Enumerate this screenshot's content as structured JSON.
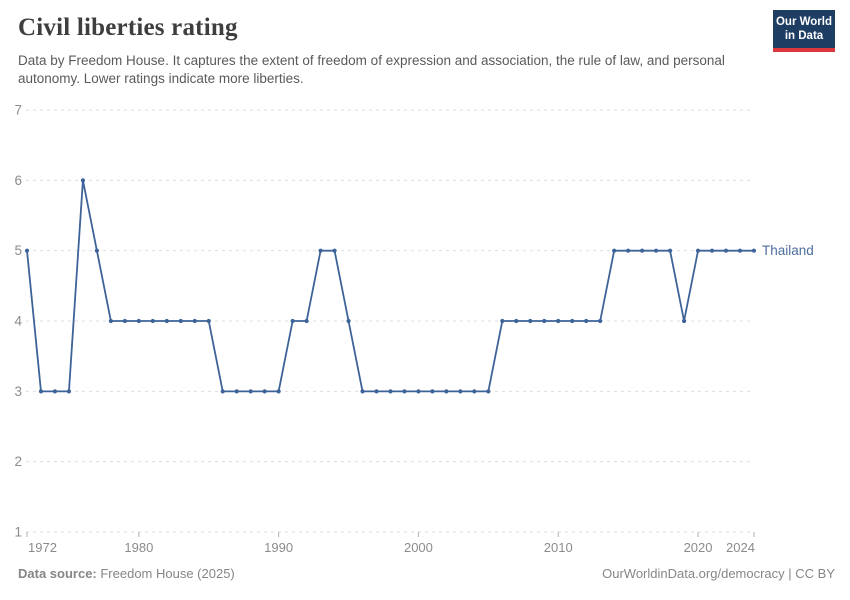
{
  "header": {
    "title": "Civil liberties rating",
    "subtitle": "Data by Freedom House. It captures the extent of freedom of expression and association, the rule of law, and personal autonomy. Lower ratings indicate more liberties.",
    "logo_line1": "Our World",
    "logo_line2": "in Data"
  },
  "chart_data": {
    "type": "line",
    "title": "Civil liberties rating",
    "entity": "Thailand",
    "xlabel": "",
    "ylabel": "",
    "ylim": [
      1,
      7
    ],
    "yticks": [
      1,
      2,
      3,
      4,
      5,
      6,
      7
    ],
    "xticks": [
      1972,
      1980,
      1990,
      2000,
      2010,
      2020,
      2024
    ],
    "grid": "horizontal-dashed",
    "legend_position": "right-of-line-end",
    "x": [
      1972,
      1973,
      1974,
      1975,
      1976,
      1977,
      1978,
      1979,
      1980,
      1981,
      1982,
      1983,
      1984,
      1985,
      1986,
      1987,
      1988,
      1989,
      1990,
      1991,
      1992,
      1993,
      1994,
      1995,
      1996,
      1997,
      1998,
      1999,
      2000,
      2001,
      2002,
      2003,
      2004,
      2005,
      2006,
      2007,
      2008,
      2009,
      2010,
      2011,
      2012,
      2013,
      2014,
      2015,
      2016,
      2017,
      2018,
      2019,
      2020,
      2021,
      2022,
      2023,
      2024
    ],
    "values": [
      5,
      3,
      3,
      3,
      6,
      5,
      4,
      4,
      4,
      4,
      4,
      4,
      4,
      4,
      3,
      3,
      3,
      3,
      3,
      4,
      4,
      5,
      5,
      4,
      3,
      3,
      3,
      3,
      3,
      3,
      3,
      3,
      3,
      3,
      4,
      4,
      4,
      4,
      4,
      4,
      4,
      4,
      5,
      5,
      5,
      5,
      5,
      4,
      5,
      5,
      5,
      5,
      5
    ]
  },
  "colors": {
    "line": "#3d6399",
    "entity_label": "#4d6d9e",
    "grid": "#dddddd",
    "tick": "#b0b0b0",
    "axis_text": "#8b8b8b",
    "title": "#3e3e3e",
    "subtitle": "#5a5a5a",
    "footer": "#868686",
    "logo_bg": "#1d3d63",
    "logo_red": "#dc373d"
  },
  "footer": {
    "source_label": "Data source:",
    "source_value": " Freedom House (2025)",
    "rights": "OurWorldinData.org/democracy | CC BY"
  }
}
